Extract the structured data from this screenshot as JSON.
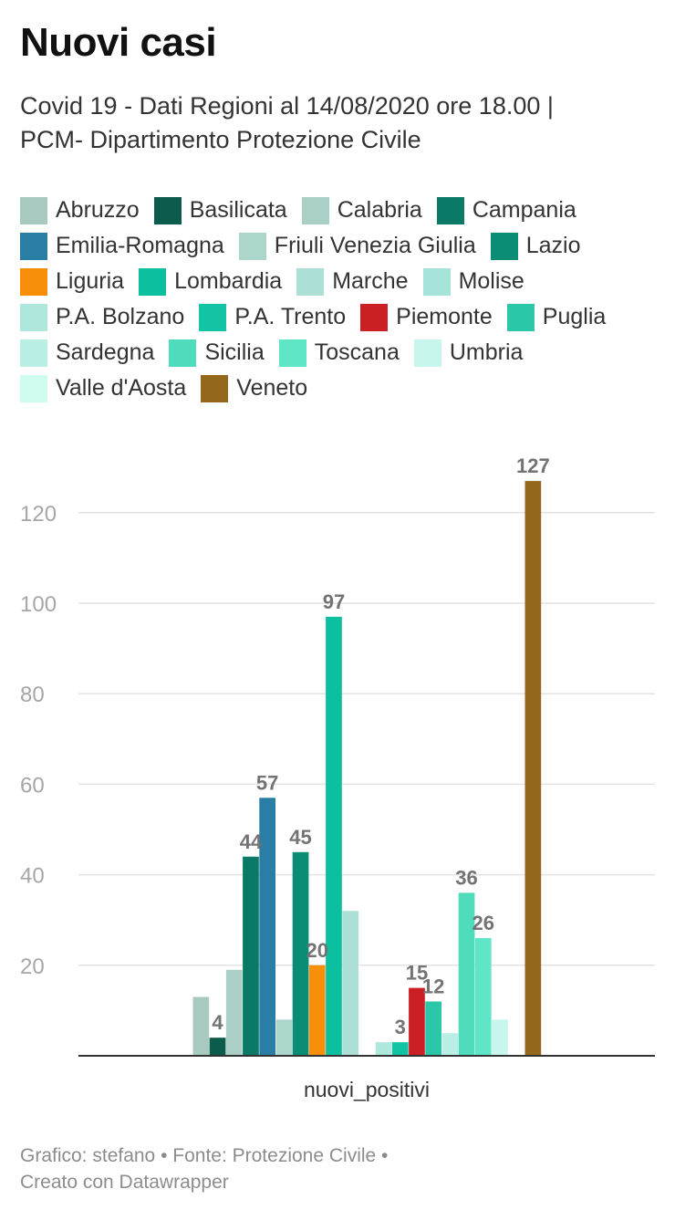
{
  "title": "Nuovi casi",
  "subtitle_line1": "Covid 19 - Dati Regioni al 14/08/2020 ore 18.00 |",
  "subtitle_line2": "PCM- Dipartimento Protezione Civile",
  "footer_line1": "Grafico: stefano • Fonte: Protezione Civile •",
  "footer_line2": "Creato con Datawrapper",
  "chart_data": {
    "type": "bar",
    "title": "Nuovi casi",
    "categories": [
      "nuovi_positivi"
    ],
    "ylim": [
      0,
      130
    ],
    "yticks": [
      20,
      40,
      60,
      80,
      100,
      120
    ],
    "grid": true,
    "legend_position": "top",
    "series": [
      {
        "name": "Abruzzo",
        "value": 13,
        "color": "#a8c9c0",
        "label": ""
      },
      {
        "name": "Basilicata",
        "value": 4,
        "color": "#0b5c4c",
        "label": "4"
      },
      {
        "name": "Calabria",
        "value": 19,
        "color": "#a9cfc6",
        "label": ""
      },
      {
        "name": "Campania",
        "value": 44,
        "color": "#0a7a66",
        "label": "44"
      },
      {
        "name": "Emilia-Romagna",
        "value": 57,
        "color": "#2a7ea6",
        "label": "57"
      },
      {
        "name": "Friuli Venezia Giulia",
        "value": 8,
        "color": "#acd6cc",
        "label": ""
      },
      {
        "name": "Lazio",
        "value": 45,
        "color": "#0b8c74",
        "label": "45"
      },
      {
        "name": "Liguria",
        "value": 20,
        "color": "#f78f0a",
        "label": "20"
      },
      {
        "name": "Lombardia",
        "value": 97,
        "color": "#0cbf9e",
        "label": "97"
      },
      {
        "name": "Marche",
        "value": 32,
        "color": "#ace0d6",
        "label": ""
      },
      {
        "name": "Molise",
        "value": 0,
        "color": "#a6e3d8",
        "label": ""
      },
      {
        "name": "P.A. Bolzano",
        "value": 3,
        "color": "#aee8dd",
        "label": ""
      },
      {
        "name": "P.A. Trento",
        "value": 3,
        "color": "#12c4a3",
        "label": "3"
      },
      {
        "name": "Piemonte",
        "value": 15,
        "color": "#cc1f24",
        "label": "15"
      },
      {
        "name": "Puglia",
        "value": 12,
        "color": "#2bc7a8",
        "label": "12"
      },
      {
        "name": "Sardegna",
        "value": 5,
        "color": "#b8eee3",
        "label": ""
      },
      {
        "name": "Sicilia",
        "value": 36,
        "color": "#4fdcbd",
        "label": "36"
      },
      {
        "name": "Toscana",
        "value": 26,
        "color": "#5ee6c6",
        "label": "26"
      },
      {
        "name": "Umbria",
        "value": 8,
        "color": "#c6f6ec",
        "label": ""
      },
      {
        "name": "Valle d'Aosta",
        "value": 0,
        "color": "#cffbf1",
        "label": ""
      },
      {
        "name": "Veneto",
        "value": 127,
        "color": "#94681c",
        "label": "127"
      }
    ]
  }
}
